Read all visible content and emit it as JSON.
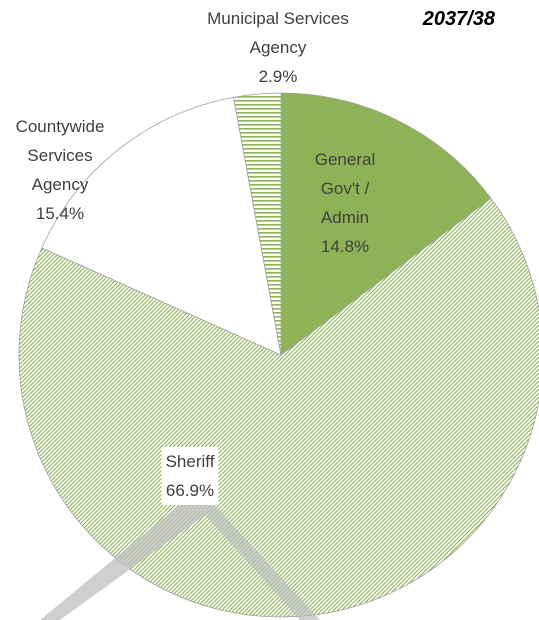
{
  "chart_data": {
    "type": "pie",
    "title": "2037/38",
    "categories": [
      "General Gov't / Admin",
      "Sheriff",
      "Countywide Services Agency",
      "Municipal Services Agency"
    ],
    "values": [
      14.8,
      66.9,
      15.4,
      2.9
    ],
    "value_labels": [
      "14.8%",
      "66.9%",
      "15.4%",
      "2.9%"
    ],
    "colors": [
      "#8db356",
      "#8db356",
      "#ffffff",
      "#8db356"
    ],
    "patterns": [
      "solid",
      "diagonal-hatch",
      "solid",
      "horizontal-stripes"
    ]
  }
}
